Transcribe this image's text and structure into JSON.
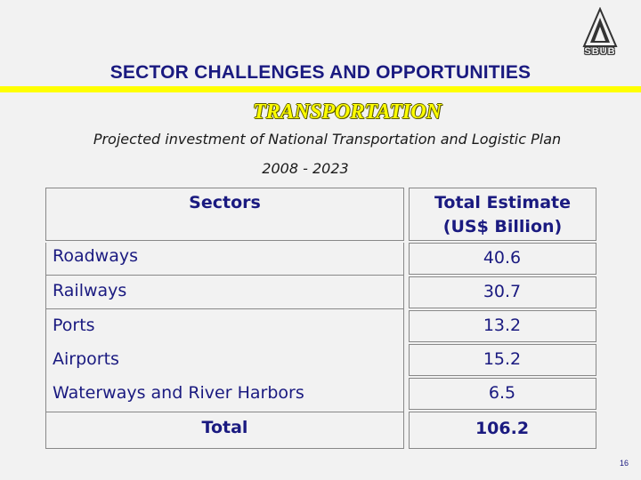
{
  "header": {
    "logo_text": "SBUB",
    "title": "SECTOR CHALLENGES AND OPPORTUNITIES",
    "subtitle": "TRANSPORTATION",
    "description": "Projected investment of National Transportation and Logistic Plan",
    "years": "2008 - 2023"
  },
  "table": {
    "col_sectors": "Sectors",
    "col_total_line1": "Total Estimate",
    "col_total_line2": "(US$ Billion)",
    "rows": [
      {
        "sector": "Roadways",
        "value": "40.6"
      },
      {
        "sector": "Railways",
        "value": "30.7"
      },
      {
        "sector": "Ports",
        "value": "13.2"
      },
      {
        "sector": "Airports",
        "value": "15.2"
      },
      {
        "sector": "Waterways and River Harbors",
        "value": "6.5"
      }
    ],
    "total_label": "Total",
    "total_value": "106.2"
  },
  "footer": {
    "page_number": "16"
  },
  "colors": {
    "title": "#1a1a80",
    "accent_bar": "#ffff00",
    "background": "#f2f2f2"
  }
}
